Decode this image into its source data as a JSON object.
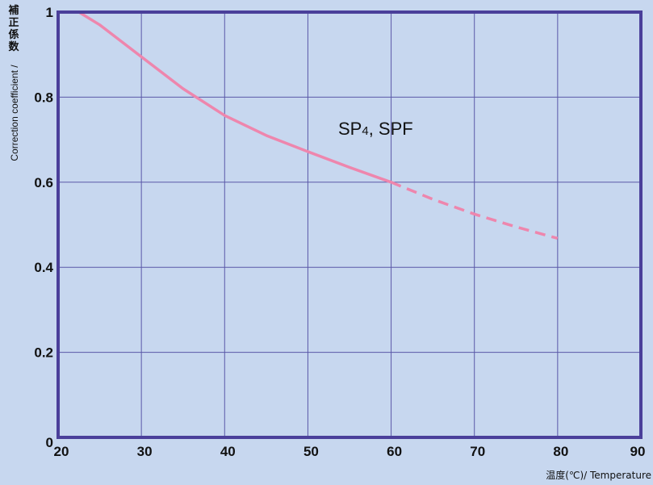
{
  "chart_data": {
    "type": "line",
    "xlim": [
      20,
      90
    ],
    "ylim": [
      0,
      1
    ],
    "x_ticks": [
      "20",
      "30",
      "40",
      "50",
      "60",
      "70",
      "80",
      "90"
    ],
    "y_ticks": [
      "0",
      "0.2",
      "0.4",
      "0.6",
      "0.8",
      "1"
    ],
    "ylabel_jp": "補正係数",
    "ylabel_en": "Correction coefficient / ",
    "xlabel": "温度(℃)/ Temperature",
    "grid": true,
    "series": [
      {
        "label_main": "SP",
        "label_sub": "4",
        "label_rest": ", SPF",
        "color": "#ee86ad",
        "solid": [
          [
            22.5,
            1.0
          ],
          [
            25,
            0.97
          ],
          [
            30,
            0.895
          ],
          [
            35,
            0.82
          ],
          [
            40,
            0.757
          ],
          [
            45,
            0.71
          ],
          [
            50,
            0.672
          ],
          [
            55,
            0.635
          ],
          [
            60,
            0.6
          ]
        ],
        "dashed": [
          [
            60,
            0.6
          ],
          [
            65,
            0.56
          ],
          [
            70,
            0.525
          ],
          [
            75,
            0.495
          ],
          [
            80,
            0.468
          ]
        ]
      }
    ]
  }
}
